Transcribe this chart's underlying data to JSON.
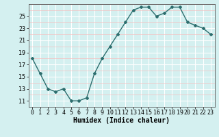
{
  "x": [
    0,
    1,
    2,
    3,
    4,
    5,
    6,
    7,
    8,
    9,
    10,
    11,
    12,
    13,
    14,
    15,
    16,
    17,
    18,
    19,
    20,
    21,
    22,
    23
  ],
  "y": [
    18,
    15.5,
    13,
    12.5,
    13,
    11,
    11,
    11.5,
    15.5,
    18,
    20,
    22,
    24,
    26,
    26.5,
    26.5,
    25,
    25.5,
    26.5,
    26.5,
    24,
    23.5,
    23,
    22
  ],
  "line_color": "#2d6e6e",
  "marker": "D",
  "marker_size": 2,
  "bg_color": "#d4f0f0",
  "grid_major_color": "#ffffff",
  "grid_minor_color": "#f5c0c0",
  "xlabel": "Humidex (Indice chaleur)",
  "xlabel_fontsize": 7,
  "ylim": [
    10,
    27
  ],
  "xlim": [
    -0.5,
    23.5
  ],
  "yticks": [
    11,
    13,
    15,
    17,
    19,
    21,
    23,
    25
  ],
  "xticks": [
    0,
    1,
    2,
    3,
    4,
    5,
    6,
    7,
    8,
    9,
    10,
    11,
    12,
    13,
    14,
    15,
    16,
    17,
    18,
    19,
    20,
    21,
    22,
    23
  ],
  "tick_fontsize": 6,
  "line_width": 1.0
}
